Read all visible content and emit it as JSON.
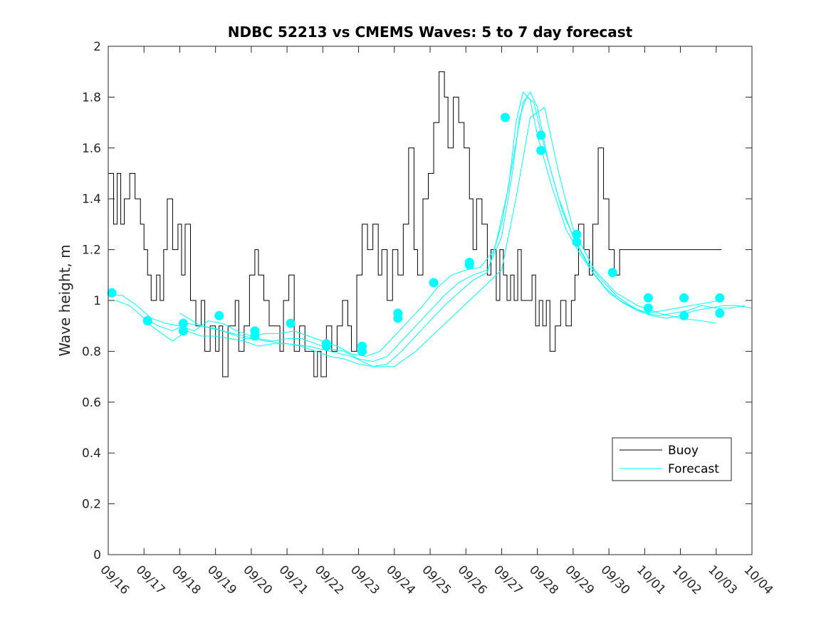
{
  "chart_data": {
    "type": "line",
    "title": "NDBC 52213 vs CMEMS Waves: 5 to 7 day forecast",
    "xlabel": "",
    "ylabel": "Wave height, m",
    "xlim": [
      0,
      18
    ],
    "ylim": [
      0,
      2
    ],
    "x_tick_labels": [
      "09/16",
      "09/17",
      "09/18",
      "09/19",
      "09/20",
      "09/21",
      "09/22",
      "09/23",
      "09/24",
      "09/25",
      "09/26",
      "09/27",
      "09/28",
      "09/29",
      "09/30",
      "10/01",
      "10/02",
      "10/03",
      "10/04"
    ],
    "y_ticks": [
      0,
      0.2,
      0.4,
      0.6,
      0.8,
      1,
      1.2,
      1.4,
      1.6,
      1.8,
      2
    ],
    "y_tick_labels": [
      "0",
      "0.2",
      "0.4",
      "0.6",
      "0.8",
      "1",
      "1.2",
      "1.4",
      "1.6",
      "1.8",
      "2"
    ],
    "colors": {
      "buoy": "#000000",
      "forecast": "#00FFFF",
      "axes": "#262626"
    },
    "legend": {
      "position": "bottom-right",
      "entries": [
        "Buoy",
        "Forecast"
      ]
    },
    "series": [
      {
        "name": "Buoy",
        "style": "step-line",
        "color": "#000000",
        "x": [
          0.0,
          0.15,
          0.25,
          0.35,
          0.45,
          0.6,
          0.75,
          0.9,
          1.0,
          1.1,
          1.2,
          1.35,
          1.45,
          1.55,
          1.65,
          1.8,
          1.95,
          2.05,
          2.15,
          2.3,
          2.45,
          2.6,
          2.7,
          2.85,
          3.0,
          3.1,
          3.2,
          3.35,
          3.55,
          3.65,
          3.8,
          3.95,
          4.1,
          4.2,
          4.35,
          4.5,
          4.65,
          4.8,
          4.9,
          5.05,
          5.2,
          5.35,
          5.5,
          5.65,
          5.75,
          5.85,
          5.95,
          6.1,
          6.25,
          6.4,
          6.55,
          6.7,
          6.8,
          6.95,
          7.1,
          7.25,
          7.4,
          7.55,
          7.65,
          7.8,
          7.95,
          8.1,
          8.25,
          8.4,
          8.55,
          8.65,
          8.8,
          8.95,
          9.1,
          9.25,
          9.4,
          9.5,
          9.65,
          9.8,
          9.95,
          10.1,
          10.2,
          10.3,
          10.45,
          10.6,
          10.7,
          10.85,
          10.95,
          11.05,
          11.15,
          11.25,
          11.35,
          11.45,
          11.55,
          11.7,
          11.85,
          11.95,
          12.05,
          12.15,
          12.25,
          12.35,
          12.5,
          12.65,
          12.8,
          12.95,
          13.05,
          13.15,
          13.3,
          13.45,
          13.55,
          13.7,
          13.85,
          14.0,
          14.15,
          14.3,
          14.45,
          14.6,
          14.75,
          14.9,
          15.05,
          15.15,
          15.3,
          15.45,
          15.6,
          15.75,
          15.9,
          16.0,
          16.15,
          16.3,
          16.45,
          16.55,
          16.65,
          16.75,
          16.85,
          17.0
        ],
        "y": [
          1.5,
          1.3,
          1.5,
          1.3,
          1.4,
          1.5,
          1.4,
          1.3,
          1.2,
          1.1,
          1.0,
          1.1,
          1.0,
          1.2,
          1.4,
          1.2,
          1.3,
          1.1,
          1.3,
          1.0,
          0.9,
          1.0,
          0.8,
          0.9,
          0.8,
          0.9,
          0.7,
          0.9,
          1.0,
          0.8,
          0.9,
          1.1,
          1.2,
          1.1,
          1.0,
          0.9,
          0.9,
          0.8,
          1.0,
          1.1,
          0.8,
          0.9,
          0.8,
          0.8,
          0.7,
          0.8,
          0.7,
          0.9,
          0.8,
          0.9,
          1.0,
          0.9,
          0.8,
          1.1,
          1.3,
          1.2,
          1.3,
          1.1,
          1.2,
          1.0,
          1.2,
          1.1,
          1.3,
          1.6,
          1.2,
          1.1,
          1.4,
          1.5,
          1.7,
          1.9,
          1.8,
          1.6,
          1.8,
          1.7,
          1.6,
          1.4,
          1.2,
          1.4,
          1.3,
          1.1,
          1.2,
          1.0,
          1.2,
          1.1,
          1.0,
          1.1,
          1.0,
          1.2,
          1.0,
          1.0,
          1.1,
          0.9,
          1.0,
          0.9,
          1.0,
          0.8,
          0.9,
          1.0,
          0.9,
          1.0,
          1.1,
          1.3,
          1.2,
          1.1,
          1.3,
          1.6,
          1.4,
          1.2,
          1.1,
          1.2,
          1.2,
          1.2,
          1.2,
          1.2,
          1.2,
          1.2,
          1.2,
          1.2,
          1.2,
          1.2,
          1.2,
          1.2,
          1.2,
          1.2,
          1.2,
          1.2,
          1.2,
          1.2,
          1.2,
          1.2
        ]
      },
      {
        "name": "Forecast",
        "style": "line",
        "color": "#00FFFF",
        "lines": [
          {
            "x": [
              0.0,
              0.4,
              0.8,
              1.2,
              1.6,
              2.0,
              2.4,
              2.8,
              3.2,
              3.6,
              4.0,
              4.4,
              4.8,
              5.2,
              5.6,
              6.0,
              6.4,
              6.8,
              7.2,
              7.6,
              8.0,
              8.4,
              8.8,
              9.2,
              9.6,
              10.0,
              10.4,
              10.8,
              11.2,
              11.4,
              11.6,
              11.8,
              12.0,
              12.4,
              12.8,
              13.2,
              13.6,
              14.0,
              14.4,
              14.8,
              15.2,
              15.6,
              16.0,
              16.4,
              16.8,
              17.2,
              17.6,
              18.0
            ],
            "y": [
              1.02,
              1.02,
              0.98,
              0.93,
              0.91,
              0.9,
              0.88,
              0.92,
              0.91,
              0.88,
              0.86,
              0.87,
              0.87,
              0.88,
              0.86,
              0.84,
              0.82,
              0.79,
              0.78,
              0.8,
              0.86,
              0.92,
              0.98,
              1.05,
              1.1,
              1.12,
              1.13,
              1.2,
              1.45,
              1.7,
              1.82,
              1.79,
              1.65,
              1.45,
              1.28,
              1.18,
              1.1,
              1.03,
              0.99,
              0.96,
              0.94,
              0.93,
              0.94,
              0.96,
              0.97,
              0.98,
              0.98,
              0.97
            ]
          },
          {
            "x": [
              0.2,
              0.6,
              1.0,
              1.4,
              1.8,
              2.2,
              2.6,
              3.0,
              3.4,
              3.8,
              4.2,
              4.6,
              5.0,
              5.4,
              5.8,
              6.2,
              6.6,
              7.0,
              7.4,
              7.8,
              8.2,
              8.6,
              9.0,
              9.4,
              9.8,
              10.2,
              10.6,
              11.0,
              11.3,
              11.5,
              11.7,
              11.9,
              12.2,
              12.6,
              13.0,
              13.4,
              13.8,
              14.2,
              14.6,
              15.0,
              15.4,
              15.8,
              16.2,
              16.6,
              17.0,
              17.4,
              17.8
            ],
            "y": [
              1.0,
              0.98,
              0.93,
              0.9,
              0.88,
              0.91,
              0.9,
              0.89,
              0.87,
              0.85,
              0.85,
              0.84,
              0.85,
              0.85,
              0.83,
              0.81,
              0.8,
              0.77,
              0.76,
              0.78,
              0.84,
              0.9,
              0.96,
              1.02,
              1.07,
              1.1,
              1.12,
              1.25,
              1.5,
              1.72,
              1.8,
              1.78,
              1.6,
              1.4,
              1.25,
              1.15,
              1.08,
              1.02,
              0.98,
              0.95,
              0.94,
              0.95,
              0.96,
              0.98,
              0.97,
              0.97,
              0.98
            ]
          },
          {
            "x": [
              1.0,
              1.4,
              1.8,
              2.2,
              2.6,
              3.0,
              3.4,
              3.8,
              4.2,
              4.6,
              5.0,
              5.4,
              5.8,
              6.2,
              6.6,
              7.0,
              7.4,
              7.8,
              8.2,
              8.6,
              9.0,
              9.4,
              9.8,
              10.2,
              10.6,
              11.0,
              11.4,
              11.6,
              11.8,
              12.0,
              12.3,
              12.7,
              13.1,
              13.5,
              13.9,
              14.3,
              14.7,
              15.1,
              15.5,
              15.9,
              16.3,
              16.7,
              17.1
            ],
            "y": [
              0.92,
              0.88,
              0.84,
              0.88,
              0.86,
              0.86,
              0.85,
              0.84,
              0.82,
              0.83,
              0.83,
              0.82,
              0.8,
              0.78,
              0.77,
              0.75,
              0.74,
              0.75,
              0.8,
              0.86,
              0.92,
              0.98,
              1.03,
              1.08,
              1.11,
              1.3,
              1.62,
              1.78,
              1.82,
              1.76,
              1.55,
              1.35,
              1.22,
              1.12,
              1.05,
              1.0,
              0.97,
              0.95,
              0.96,
              0.97,
              0.98,
              0.99,
              1.0
            ]
          },
          {
            "x": [
              2.0,
              2.6,
              3.2,
              3.8,
              4.4,
              5.0,
              5.6,
              6.2,
              6.8,
              7.4,
              8.0,
              8.6,
              9.2,
              9.8,
              10.4,
              11.0,
              11.4,
              11.8,
              12.2,
              12.6,
              13.0,
              13.6,
              14.2,
              14.8,
              15.4,
              16.0,
              16.6,
              17.0
            ],
            "y": [
              0.95,
              0.9,
              0.88,
              0.86,
              0.84,
              0.83,
              0.82,
              0.8,
              0.78,
              0.74,
              0.74,
              0.8,
              0.88,
              0.96,
              1.04,
              1.12,
              1.4,
              1.72,
              1.76,
              1.5,
              1.28,
              1.12,
              1.03,
              0.98,
              0.95,
              0.93,
              0.92,
              0.91
            ]
          }
        ],
        "markers": {
          "x": [
            0.1,
            1.1,
            2.1,
            2.1,
            3.1,
            4.1,
            4.1,
            5.1,
            6.1,
            6.1,
            7.1,
            7.1,
            8.1,
            8.1,
            9.1,
            10.1,
            10.1,
            11.1,
            12.1,
            12.1,
            13.1,
            13.1,
            14.1,
            15.1,
            15.1,
            16.1,
            16.1,
            17.1,
            17.1
          ],
          "y": [
            1.03,
            0.92,
            0.91,
            0.88,
            0.94,
            0.88,
            0.86,
            0.91,
            0.83,
            0.82,
            0.82,
            0.8,
            0.95,
            0.93,
            1.07,
            1.15,
            1.14,
            1.72,
            1.65,
            1.59,
            1.26,
            1.23,
            1.11,
            1.01,
            0.97,
            1.01,
            0.94,
            1.01,
            0.95
          ]
        }
      }
    ]
  }
}
